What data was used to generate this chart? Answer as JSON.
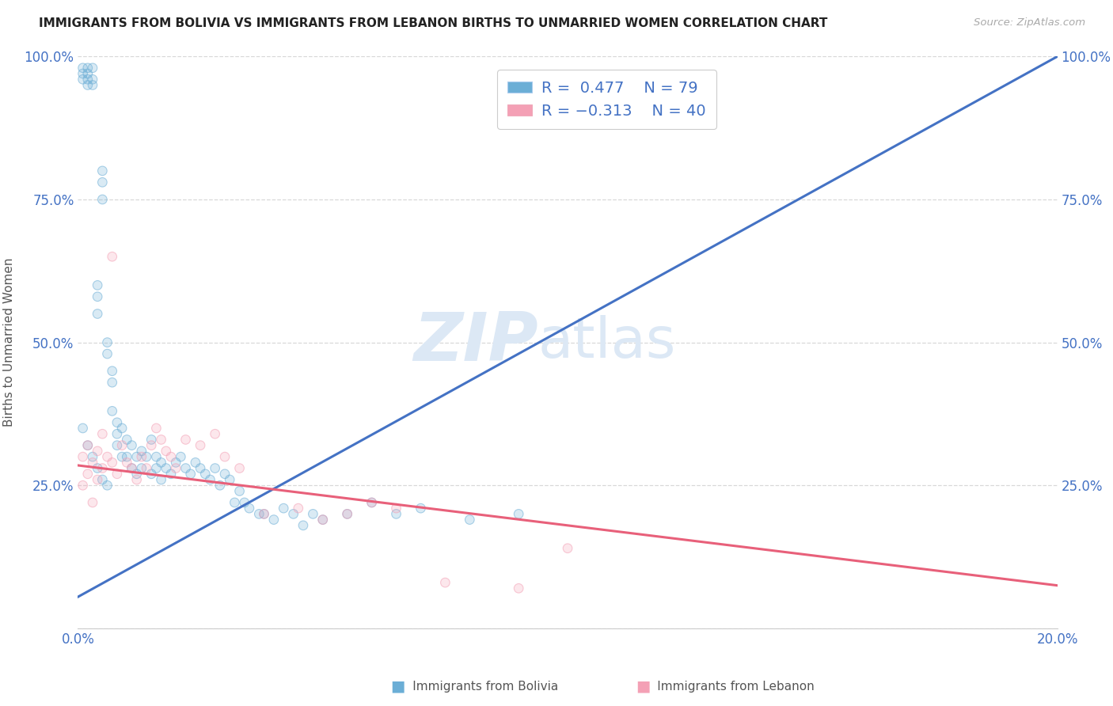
{
  "title": "IMMIGRANTS FROM BOLIVIA VS IMMIGRANTS FROM LEBANON BIRTHS TO UNMARRIED WOMEN CORRELATION CHART",
  "source": "Source: ZipAtlas.com",
  "ylabel": "Births to Unmarried Women",
  "xmin": 0.0,
  "xmax": 0.2,
  "ymin": 0.0,
  "ymax": 1.0,
  "bolivia_color": "#6baed6",
  "lebanon_color": "#f4a0b5",
  "bolivia_R": 0.477,
  "bolivia_N": 79,
  "lebanon_R": 0.313,
  "lebanon_N": 40,
  "bolivia_line": [
    [
      0.0,
      0.055
    ],
    [
      0.2,
      1.0
    ]
  ],
  "lebanon_line": [
    [
      0.0,
      0.285
    ],
    [
      0.2,
      0.075
    ]
  ],
  "bolivia_scatter_x": [
    0.001,
    0.001,
    0.001,
    0.002,
    0.002,
    0.002,
    0.002,
    0.003,
    0.003,
    0.003,
    0.004,
    0.004,
    0.004,
    0.005,
    0.005,
    0.005,
    0.006,
    0.006,
    0.007,
    0.007,
    0.007,
    0.008,
    0.008,
    0.008,
    0.009,
    0.009,
    0.01,
    0.01,
    0.011,
    0.011,
    0.012,
    0.012,
    0.013,
    0.013,
    0.014,
    0.015,
    0.015,
    0.016,
    0.016,
    0.017,
    0.017,
    0.018,
    0.019,
    0.02,
    0.021,
    0.022,
    0.023,
    0.024,
    0.025,
    0.026,
    0.027,
    0.028,
    0.029,
    0.03,
    0.031,
    0.032,
    0.033,
    0.034,
    0.035,
    0.037,
    0.038,
    0.04,
    0.042,
    0.044,
    0.046,
    0.048,
    0.05,
    0.055,
    0.06,
    0.065,
    0.07,
    0.08,
    0.09,
    0.001,
    0.002,
    0.003,
    0.004,
    0.005,
    0.006
  ],
  "bolivia_scatter_y": [
    0.98,
    0.97,
    0.96,
    0.98,
    0.97,
    0.96,
    0.95,
    0.98,
    0.96,
    0.95,
    0.55,
    0.58,
    0.6,
    0.75,
    0.78,
    0.8,
    0.5,
    0.48,
    0.45,
    0.43,
    0.38,
    0.36,
    0.34,
    0.32,
    0.35,
    0.3,
    0.33,
    0.3,
    0.32,
    0.28,
    0.3,
    0.27,
    0.31,
    0.28,
    0.3,
    0.33,
    0.27,
    0.3,
    0.28,
    0.29,
    0.26,
    0.28,
    0.27,
    0.29,
    0.3,
    0.28,
    0.27,
    0.29,
    0.28,
    0.27,
    0.26,
    0.28,
    0.25,
    0.27,
    0.26,
    0.22,
    0.24,
    0.22,
    0.21,
    0.2,
    0.2,
    0.19,
    0.21,
    0.2,
    0.18,
    0.2,
    0.19,
    0.2,
    0.22,
    0.2,
    0.21,
    0.19,
    0.2,
    0.35,
    0.32,
    0.3,
    0.28,
    0.26,
    0.25
  ],
  "lebanon_scatter_x": [
    0.001,
    0.001,
    0.002,
    0.002,
    0.003,
    0.003,
    0.004,
    0.004,
    0.005,
    0.005,
    0.006,
    0.007,
    0.007,
    0.008,
    0.009,
    0.01,
    0.011,
    0.012,
    0.013,
    0.014,
    0.015,
    0.016,
    0.017,
    0.018,
    0.019,
    0.02,
    0.022,
    0.025,
    0.028,
    0.03,
    0.033,
    0.038,
    0.045,
    0.05,
    0.055,
    0.06,
    0.065,
    0.075,
    0.09,
    0.1
  ],
  "lebanon_scatter_y": [
    0.3,
    0.25,
    0.32,
    0.27,
    0.29,
    0.22,
    0.31,
    0.26,
    0.34,
    0.28,
    0.3,
    0.65,
    0.29,
    0.27,
    0.32,
    0.29,
    0.28,
    0.26,
    0.3,
    0.28,
    0.32,
    0.35,
    0.33,
    0.31,
    0.3,
    0.28,
    0.33,
    0.32,
    0.34,
    0.3,
    0.28,
    0.2,
    0.21,
    0.19,
    0.2,
    0.22,
    0.21,
    0.08,
    0.07,
    0.14
  ],
  "yticks": [
    0.0,
    0.25,
    0.5,
    0.75,
    1.0
  ],
  "ytick_labels_left": [
    "",
    "25.0%",
    "50.0%",
    "75.0%",
    "100.0%"
  ],
  "ytick_labels_right": [
    "",
    "25.0%",
    "50.0%",
    "75.0%",
    "100.0%"
  ],
  "xticks": [
    0.0,
    0.05,
    0.1,
    0.15,
    0.2
  ],
  "xtick_labels": [
    "0.0%",
    "",
    "",
    "",
    "20.0%"
  ],
  "grid_color": "#d8d8d8",
  "title_color": "#222222",
  "axis_label_color": "#555555",
  "tick_color": "#4472c4",
  "line_color_bolivia": "#4472c4",
  "line_color_lebanon": "#e8607a",
  "watermark_zip": "ZIP",
  "watermark_atlas": "atlas",
  "watermark_color": "#dce8f5"
}
